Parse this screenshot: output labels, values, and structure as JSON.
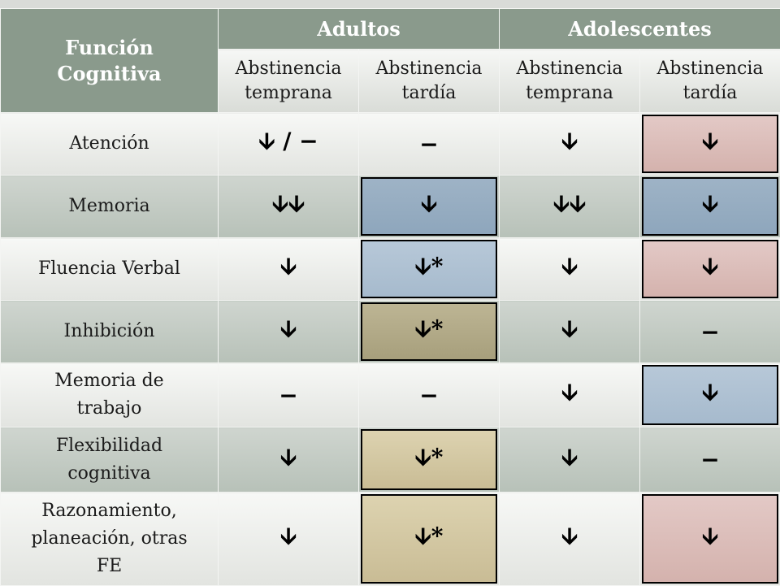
{
  "header": {
    "col0": "Función Cognitiva",
    "group1": "Adultos",
    "group2": "Adolescentes",
    "sub": [
      "Abstinencia temprana",
      "Abstinencia tardía",
      "Abstinencia temprana",
      "Abstinencia tardía"
    ]
  },
  "rows": [
    {
      "label": "Atención",
      "cells": [
        "🡫  /  −",
        "−",
        "🡫",
        "🡫"
      ]
    },
    {
      "label": "Memoria",
      "cells": [
        "🡫🡫",
        "🡫",
        "🡫🡫",
        "🡫"
      ]
    },
    {
      "label": "Fluencia Verbal",
      "cells": [
        "🡫",
        "🡫*",
        "🡫",
        "🡫"
      ]
    },
    {
      "label": "Inhibición",
      "cells": [
        "🡫",
        "🡫*",
        "🡫",
        "−"
      ]
    },
    {
      "label": "Memoria de trabajo",
      "cells": [
        "−",
        "−",
        "🡫",
        "🡫"
      ]
    },
    {
      "label": "Flexibilidad cognitiva",
      "cells": [
        "🡫",
        "🡫*",
        "🡫",
        "−"
      ]
    },
    {
      "label": "Razonamiento, planeación, otras FE",
      "cells": [
        "🡫",
        "🡫*",
        "🡫",
        "🡫"
      ]
    }
  ],
  "highlight_colors": {
    "blue": "#9eb3c6",
    "pink": "#e3c9c6",
    "tan": "#bdb594"
  }
}
